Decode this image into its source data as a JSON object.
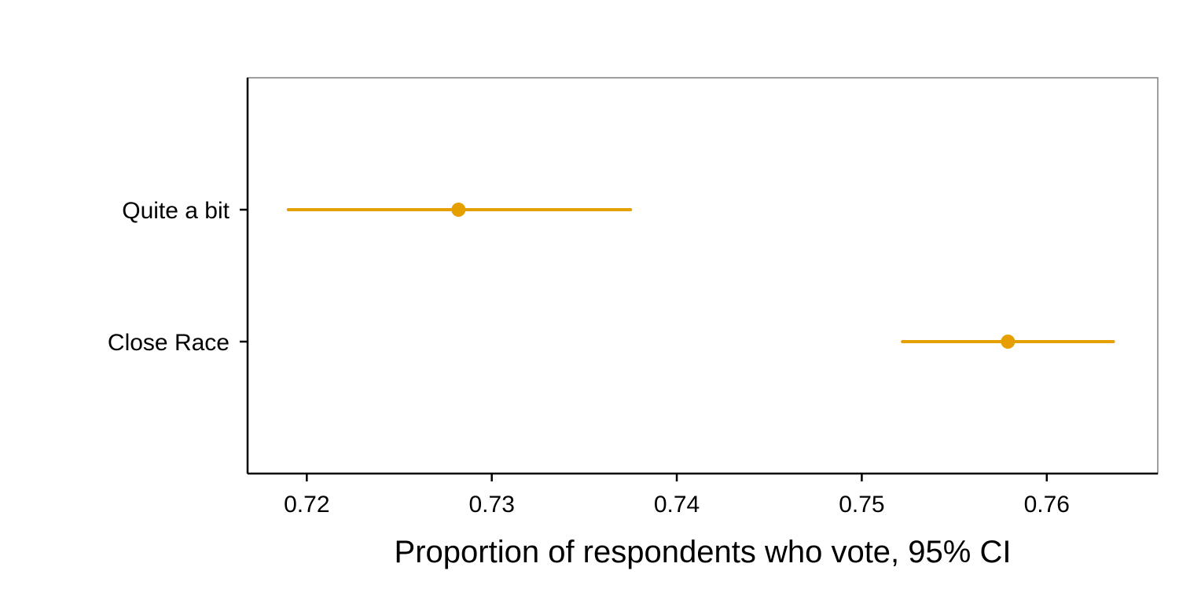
{
  "chart_data": {
    "type": "scatter",
    "title": "",
    "xlabel": "Proportion of respondents who vote, 95% CI",
    "ylabel": "",
    "xlim": [
      0.7168,
      0.766
    ],
    "x_ticks": [
      "0.72",
      "0.73",
      "0.74",
      "0.75",
      "0.76"
    ],
    "categories": [
      "Quite a bit",
      "Close Race"
    ],
    "series": [
      {
        "points": [
          {
            "category": "Quite a bit",
            "estimate": 0.7282,
            "ci_low": 0.719,
            "ci_high": 0.7375
          },
          {
            "category": "Close Race",
            "estimate": 0.7579,
            "ci_low": 0.7522,
            "ci_high": 0.7636
          }
        ]
      }
    ],
    "color": "#E69F00",
    "grid": false,
    "legend": "none"
  }
}
